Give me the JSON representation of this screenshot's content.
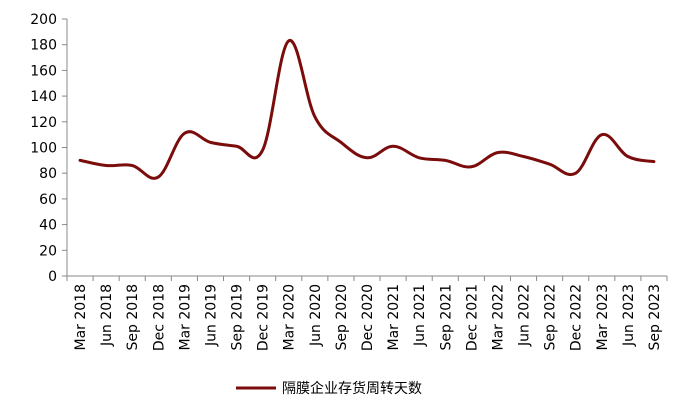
{
  "chart_data": {
    "type": "line",
    "title": "",
    "xlabel": "",
    "ylabel": "",
    "ylim": [
      0,
      200
    ],
    "yticks": [
      0,
      20,
      40,
      60,
      80,
      100,
      120,
      140,
      160,
      180,
      200
    ],
    "grid": false,
    "legend_position": "bottom",
    "categories": [
      "Mar 2018",
      "Jun 2018",
      "Sep 2018",
      "Dec 2018",
      "Mar 2019",
      "Jun 2019",
      "Sep 2019",
      "Dec 2019",
      "Mar 2020",
      "Jun 2020",
      "Sep 2020",
      "Dec 2020",
      "Mar 2021",
      "Jun 2021",
      "Sep 2021",
      "Dec 2021",
      "Mar 2022",
      "Jun 2022",
      "Sep 2022",
      "Dec 2022",
      "Mar 2023",
      "Jun 2023",
      "Sep 2023"
    ],
    "series": [
      {
        "name": "隔膜企业存货周转天数",
        "color": "#7b0c0c",
        "values": [
          90,
          86,
          86,
          77,
          111,
          104,
          101,
          98,
          183,
          124,
          104,
          92,
          101,
          92,
          90,
          85,
          96,
          93,
          87,
          80,
          110,
          93,
          89
        ]
      }
    ]
  }
}
